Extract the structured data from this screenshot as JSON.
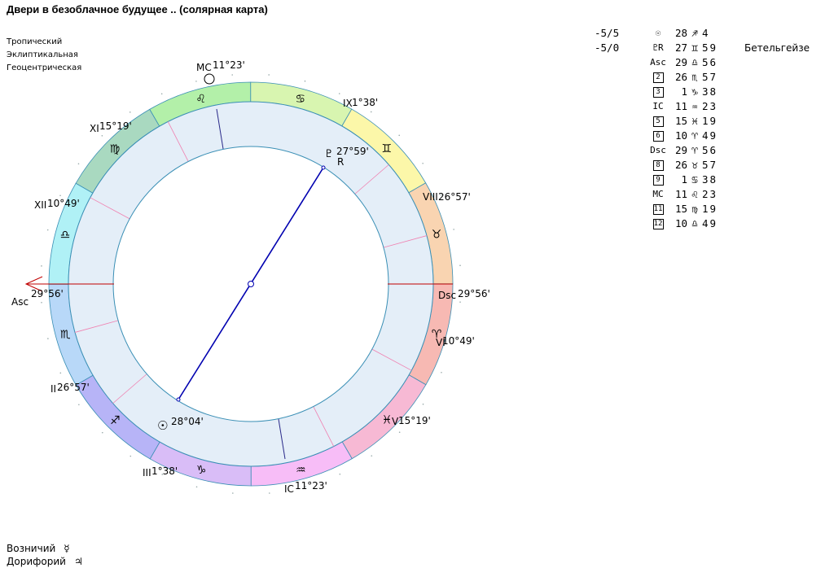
{
  "title": "Двери в безоблачное будущее .. (солярная карта)",
  "settings": [
    "Тропический",
    "Эклиптикальная",
    "Геоцентрическая"
  ],
  "wheel": {
    "angles": {
      "asc_label": "Asc",
      "asc_deg": "29°56'",
      "dsc_label": "Dsc",
      "dsc_deg": "29°56'",
      "mc_label": "MC",
      "mc_deg": "11°23'",
      "ic_label": "IC",
      "ic_deg": "11°23'"
    },
    "houses": [
      {
        "label": "II",
        "deg": "26°57'"
      },
      {
        "label": "III",
        "deg": "1°38'"
      },
      {
        "label": "V",
        "deg": "15°19'"
      },
      {
        "label": "VI",
        "deg": "10°49'"
      },
      {
        "label": "VIII",
        "deg": "26°57'"
      },
      {
        "label": "IX",
        "deg": "1°38'"
      },
      {
        "label": "XI",
        "deg": "15°19'"
      },
      {
        "label": "XII",
        "deg": "10°49'"
      }
    ],
    "planets": [
      {
        "name": "sun",
        "glyph": "☉",
        "deg": "28°04'",
        "retro": ""
      },
      {
        "name": "pluto",
        "glyph": "♇",
        "deg": "27°59'",
        "retro": "R"
      }
    ],
    "colors": {
      "fire": "#f7b9b3",
      "earth": "#a8d8c0",
      "air": "#ffffaa",
      "water": "#b8d8f8",
      "inner": "#e4eef8",
      "ring_line": "#3a8fb5",
      "aspect": "#0000b0",
      "cusp": "#f080b0"
    }
  },
  "positions": [
    {
      "aspect": "-5/5",
      "point": "☉",
      "point_name": "sun",
      "deg": "28",
      "sign": "♐",
      "min": "4",
      "star": ""
    },
    {
      "aspect": "-5/0",
      "point": "♇R",
      "point_name": "pluto",
      "deg": "27",
      "sign": "♊",
      "min": "59",
      "star": "Бетельгейзе"
    },
    {
      "aspect": "",
      "point": "Asc",
      "point_name": "asc",
      "deg": "29",
      "sign": "♎",
      "min": "56",
      "star": ""
    },
    {
      "aspect": "",
      "point": "2",
      "point_name": "house-2",
      "deg": "26",
      "sign": "♏",
      "min": "57",
      "star": ""
    },
    {
      "aspect": "",
      "point": "3",
      "point_name": "house-3",
      "deg": "1",
      "sign": "♑",
      "min": "38",
      "star": ""
    },
    {
      "aspect": "",
      "point": "IC",
      "point_name": "ic",
      "deg": "11",
      "sign": "♒",
      "min": "23",
      "star": ""
    },
    {
      "aspect": "",
      "point": "5",
      "point_name": "house-5",
      "deg": "15",
      "sign": "♓",
      "min": "19",
      "star": ""
    },
    {
      "aspect": "",
      "point": "6",
      "point_name": "house-6",
      "deg": "10",
      "sign": "♈",
      "min": "49",
      "star": ""
    },
    {
      "aspect": "",
      "point": "Dsc",
      "point_name": "dsc",
      "deg": "29",
      "sign": "♈",
      "min": "56",
      "star": ""
    },
    {
      "aspect": "",
      "point": "8",
      "point_name": "house-8",
      "deg": "26",
      "sign": "♉",
      "min": "57",
      "star": ""
    },
    {
      "aspect": "",
      "point": "9",
      "point_name": "house-9",
      "deg": "1",
      "sign": "♋",
      "min": "38",
      "star": ""
    },
    {
      "aspect": "",
      "point": "MC",
      "point_name": "mc",
      "deg": "11",
      "sign": "♌",
      "min": "23",
      "star": ""
    },
    {
      "aspect": "",
      "point": "11",
      "point_name": "house-11",
      "deg": "15",
      "sign": "♍",
      "min": "19",
      "star": ""
    },
    {
      "aspect": "",
      "point": "12",
      "point_name": "house-12",
      "deg": "10",
      "sign": "♎",
      "min": "49",
      "star": ""
    }
  ],
  "roles": [
    {
      "label": "Возничий",
      "glyph": "☿"
    },
    {
      "label": "Дорифорий",
      "glyph": "♃"
    }
  ]
}
